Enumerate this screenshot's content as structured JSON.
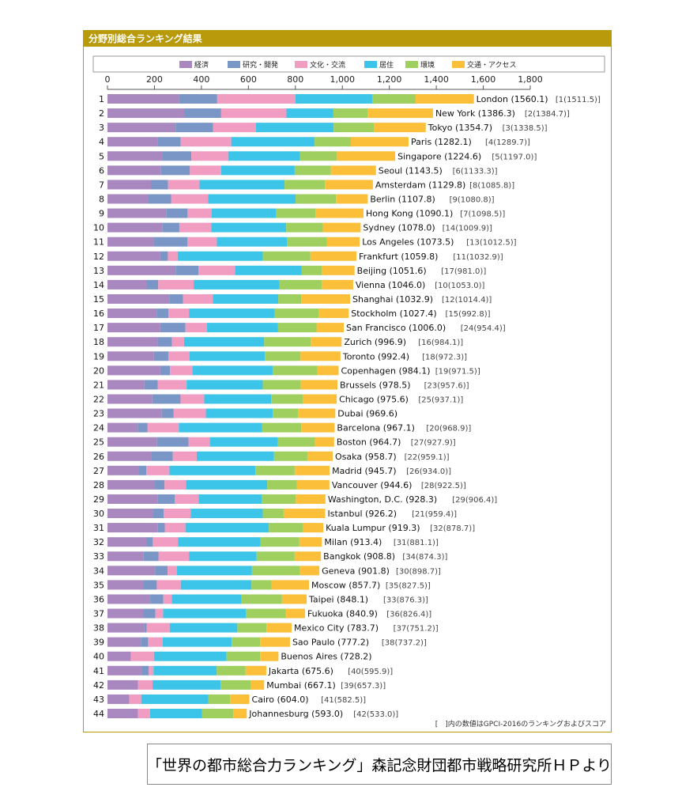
{
  "panel": {
    "title": "分野別総合ランキング結果",
    "note": "[　]内の数値はGPCI-2016のランキングおよびスコア"
  },
  "source_caption": "「世界の都市総合力ランキング」森記念財団都市戦略研究所ＨＰより",
  "chart_data": {
    "type": "bar",
    "orientation": "horizontal",
    "stacked": true,
    "title": "分野別総合ランキング結果",
    "xlim": [
      0,
      1800
    ],
    "xticks": [
      0,
      200,
      400,
      600,
      800,
      1000,
      1200,
      1400,
      1600,
      1800
    ],
    "xtick_labels": [
      "0",
      "200",
      "400",
      "600",
      "800",
      "1,000",
      "1,200",
      "1,400",
      "1,600",
      "1,800"
    ],
    "grid": false,
    "legend_position": "top",
    "series": [
      {
        "name": "経済",
        "color": "#a987bf"
      },
      {
        "name": "研究・開発",
        "color": "#7996c6"
      },
      {
        "name": "文化・交流",
        "color": "#f19cc1"
      },
      {
        "name": "居住",
        "color": "#3cc5e8"
      },
      {
        "name": "環境",
        "color": "#9fcf5e"
      },
      {
        "name": "交通・アクセス",
        "color": "#fbbf3a"
      }
    ],
    "rows": [
      {
        "rank": "1",
        "label": "London (1560.1)",
        "prev": "[1(1511.5)]",
        "segments": [
          305,
          162,
          333,
          327,
          185,
          248
        ]
      },
      {
        "rank": "2",
        "label": "New York (1386.3)",
        "prev": "[2(1384.7)]",
        "segments": [
          328,
          156,
          278,
          200,
          146,
          278
        ]
      },
      {
        "rank": "3",
        "label": "Tokyo (1354.7)",
        "prev": "[3(1338.5)]",
        "segments": [
          290,
          160,
          182,
          331,
          171,
          221
        ]
      },
      {
        "rank": "4",
        "label": "Paris (1282.1)",
        "prev": "[4(1289.7)]",
        "segments": [
          215,
          97,
          215,
          355,
          154,
          246
        ]
      },
      {
        "rank": "5",
        "label": "Singapore (1224.6)",
        "prev": "[5(1197.0)]",
        "segments": [
          234,
          123,
          157,
          306,
          157,
          248
        ]
      },
      {
        "rank": "6",
        "label": "Seoul (1143.5)",
        "prev": "[6(1133.3)]",
        "segments": [
          228,
          123,
          133,
          313,
          154,
          192
        ]
      },
      {
        "rank": "7",
        "label": "Amsterdam (1129.8)",
        "prev": "[8(1085.8)]",
        "segments": [
          185,
          73,
          134,
          362,
          172,
          204
        ]
      },
      {
        "rank": "8",
        "label": "Berlin (1107.8)",
        "prev": "[9(1080.8)]",
        "segments": [
          175,
          96,
          158,
          372,
          172,
          135
        ]
      },
      {
        "rank": "9",
        "label": "Hong Kong (1090.1)",
        "prev": "[7(1098.5)]",
        "segments": [
          250,
          91,
          102,
          276,
          167,
          204
        ]
      },
      {
        "rank": "10",
        "label": "Sydney (1078.0)",
        "prev": "[14(1009.9)]",
        "segments": [
          233,
          73,
          136,
          319,
          156,
          161
        ]
      },
      {
        "rank": "11",
        "label": "Los Angeles (1073.5)",
        "prev": "[13(1012.5)]",
        "segments": [
          197,
          144,
          125,
          298,
          171,
          139
        ]
      },
      {
        "rank": "12",
        "label": "Frankfurt (1059.8)",
        "prev": "[11(1032.9)]",
        "segments": [
          225,
          32,
          42,
          362,
          203,
          196
        ]
      },
      {
        "rank": "13",
        "label": "Beijing (1051.6)",
        "prev": "[17(981.0)]",
        "segments": [
          290,
          98,
          155,
          283,
          87,
          139
        ]
      },
      {
        "rank": "14",
        "label": "Vienna (1046.0)",
        "prev": "[10(1053.0)]",
        "segments": [
          165,
          51,
          151,
          365,
          180,
          134
        ]
      },
      {
        "rank": "15",
        "label": "Shanghai (1032.9)",
        "prev": "[12(1014.4)]",
        "segments": [
          263,
          59,
          127,
          278,
          98,
          208
        ]
      },
      {
        "rank": "16",
        "label": "Stockholm (1027.4)",
        "prev": "[15(992.8)]",
        "segments": [
          209,
          51,
          87,
          365,
          189,
          126
        ]
      },
      {
        "rank": "17",
        "label": "San Francisco (1006.0)",
        "prev": "[24(954.4)]",
        "segments": [
          225,
          107,
          92,
          301,
          165,
          116
        ]
      },
      {
        "rank": "18",
        "label": "Zurich (996.9)",
        "prev": "[16(984.1)]",
        "segments": [
          214,
          60,
          52,
          341,
          198,
          132
        ]
      },
      {
        "rank": "19",
        "label": "Toronto (992.4)",
        "prev": "[18(972.3)]",
        "segments": [
          198,
          61,
          90,
          321,
          152,
          170
        ]
      },
      {
        "rank": "20",
        "label": "Copenhagen (984.1)",
        "prev": "[19(971.5)]",
        "segments": [
          225,
          41,
          96,
          341,
          190,
          91
        ]
      },
      {
        "rank": "21",
        "label": "Brussels (978.5)",
        "prev": "[23(957.6)]",
        "segments": [
          157,
          57,
          123,
          324,
          162,
          156
        ]
      },
      {
        "rank": "22",
        "label": "Chicago (975.6)",
        "prev": "[25(937.1)]",
        "segments": [
          191,
          120,
          101,
          285,
          134,
          145
        ]
      },
      {
        "rank": "23",
        "label": "Dubai (969.6)",
        "prev": "",
        "segments": [
          231,
          51,
          137,
          285,
          107,
          159
        ]
      },
      {
        "rank": "24",
        "label": "Barcelona (967.1)",
        "prev": "[20(968.9)]",
        "segments": [
          129,
          41,
          134,
          355,
          166,
          142
        ]
      },
      {
        "rank": "25",
        "label": "Boston (964.7)",
        "prev": "[27(927.9)]",
        "segments": [
          211,
          134,
          91,
          290,
          157,
          82
        ]
      },
      {
        "rank": "26",
        "label": "Osaka (958.7)",
        "prev": "[22(959.1)]",
        "segments": [
          187,
          91,
          102,
          329,
          142,
          108
        ]
      },
      {
        "rank": "27",
        "label": "Madrid (945.7)",
        "prev": "[26(934.0)]",
        "segments": [
          133,
          32,
          99,
          366,
          167,
          149
        ]
      },
      {
        "rank": "28",
        "label": "Vancouver (944.6)",
        "prev": "[28(922.5)]",
        "segments": [
          202,
          41,
          92,
          345,
          126,
          139
        ]
      },
      {
        "rank": "29",
        "label": "Washington, D.C. (928.3)",
        "prev": "[29(906.4)]",
        "segments": [
          213,
          74,
          101,
          268,
          146,
          126
        ]
      },
      {
        "rank": "30",
        "label": "Istanbul (926.2)",
        "prev": "[21(959.4)]",
        "segments": [
          195,
          44,
          116,
          306,
          89,
          177
        ]
      },
      {
        "rank": "31",
        "label": "Kuala Lumpur (919.3)",
        "prev": "[32(878.7)]",
        "segments": [
          213,
          31,
          88,
          355,
          144,
          88
        ]
      },
      {
        "rank": "32",
        "label": "Milan (913.4)",
        "prev": "[31(881.1)]",
        "segments": [
          165,
          28,
          108,
          351,
          165,
          96
        ]
      },
      {
        "rank": "33",
        "label": "Bangkok (908.8)",
        "prev": "[34(874.3)]",
        "segments": [
          154,
          63,
          130,
          288,
          162,
          112
        ]
      },
      {
        "rank": "34",
        "label": "Geneva (901.8)",
        "prev": "[30(898.7)]",
        "segments": [
          203,
          53,
          39,
          320,
          205,
          82
        ]
      },
      {
        "rank": "35",
        "label": "Moscow (857.7)",
        "prev": "[35(827.5)]",
        "segments": [
          153,
          57,
          102,
          301,
          85,
          160
        ]
      },
      {
        "rank": "36",
        "label": "Taipei (848.1)",
        "prev": "[33(876.3)]",
        "segments": [
          182,
          56,
          36,
          296,
          173,
          105
        ]
      },
      {
        "rank": "37",
        "label": "Fukuoka (840.9)",
        "prev": "[36(826.4)]",
        "segments": [
          153,
          51,
          33,
          353,
          169,
          82
        ]
      },
      {
        "rank": "38",
        "label": "Mexico City (783.7)",
        "prev": "[37(751.2)]",
        "segments": [
          157,
          10,
          98,
          288,
          124,
          107
        ]
      },
      {
        "rank": "39",
        "label": "Sao Paulo (777.2)",
        "prev": "[38(737.2)]",
        "segments": [
          142,
          31,
          62,
          294,
          121,
          127
        ]
      },
      {
        "rank": "40",
        "label": "Buenos Aires (728.2)",
        "prev": "",
        "segments": [
          100,
          0,
          98,
          309,
          143,
          78
        ]
      },
      {
        "rank": "41",
        "label": "Jakarta (675.6)",
        "prev": "[40(595.9)]",
        "segments": [
          148,
          28,
          20,
          269,
          123,
          88
        ]
      },
      {
        "rank": "42",
        "label": "Mumbai (667.1)",
        "prev": "[39(657.3)]",
        "segments": [
          130,
          0,
          62,
          290,
          127,
          58
        ]
      },
      {
        "rank": "43",
        "label": "Cairo (604.0)",
        "prev": "[41(582.5)]",
        "segments": [
          93,
          0,
          51,
          285,
          93,
          82
        ]
      },
      {
        "rank": "44",
        "label": "Johannesburg (593.0)",
        "prev": "[42(533.0)]",
        "segments": [
          130,
          0,
          51,
          221,
          134,
          57
        ]
      }
    ]
  }
}
